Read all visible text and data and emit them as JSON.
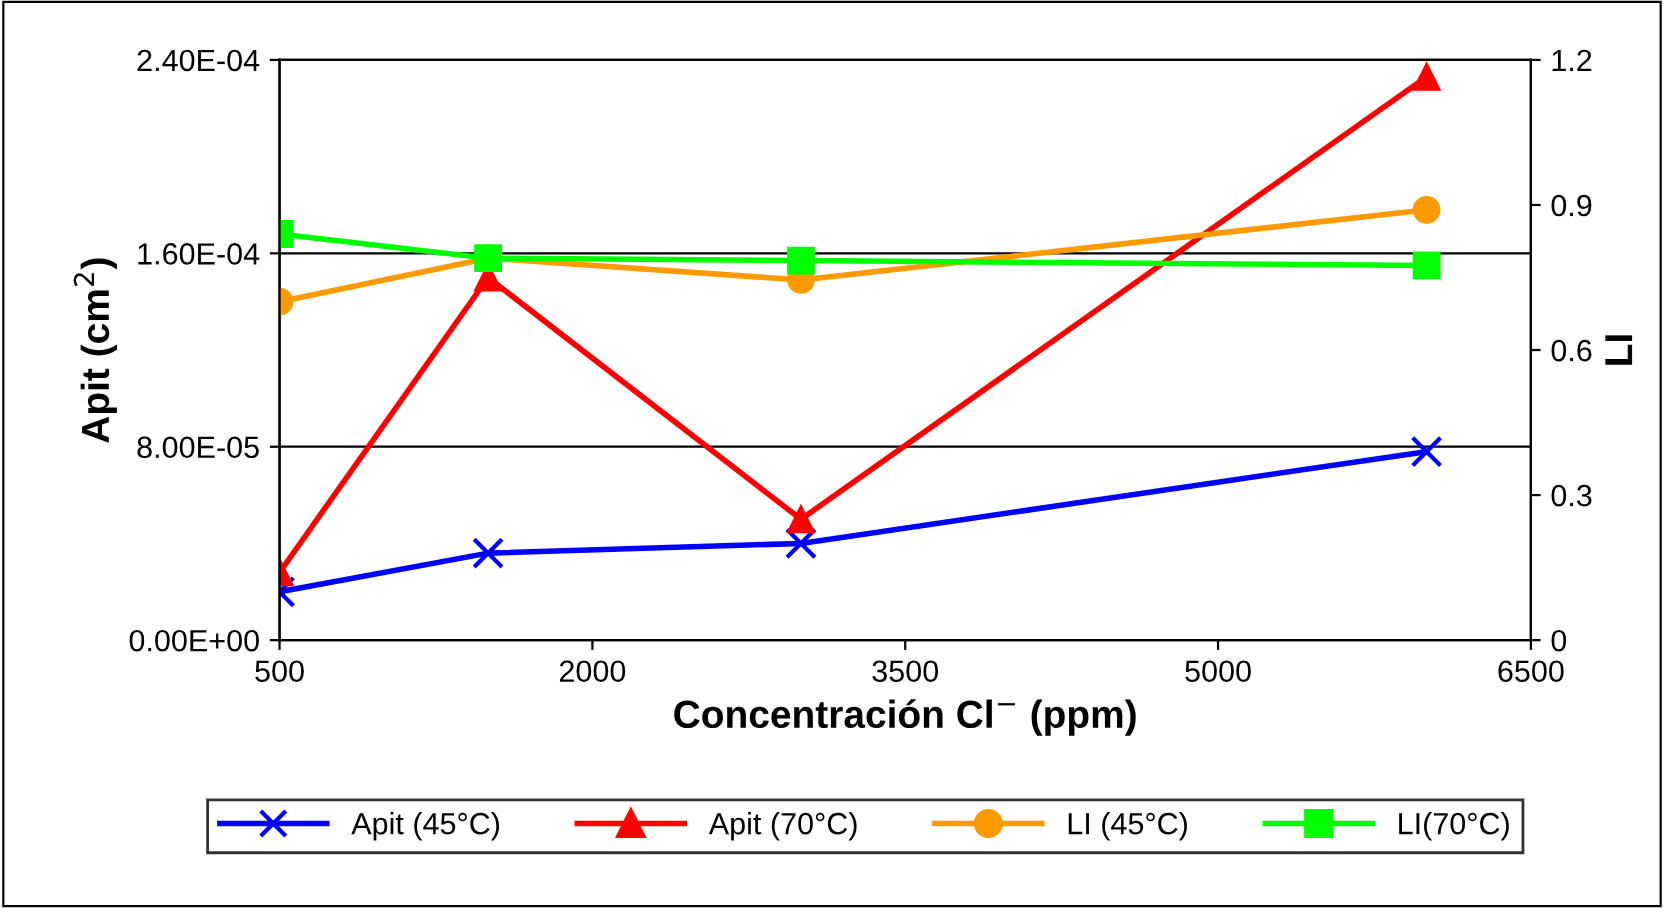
{
  "chart_data": {
    "type": "line",
    "xlabel": "Concentración Cl$^{−}$ (ppm)",
    "ylabel": "Apit (cm$^{2}$)",
    "y2label": "LI",
    "x": [
      500,
      1500,
      3000,
      6000
    ],
    "series": [
      {
        "name": "Apit (45°C)",
        "color": "#0000ff",
        "marker": "cross",
        "values": [
          2e-05,
          3.6e-05,
          4e-05,
          7.8e-05
        ]
      },
      {
        "name": "Apit (70°C)",
        "color": "#ff0000",
        "marker": "triangle",
        "values": [
          2.8e-05,
          0.00015,
          5e-05,
          0.000233
        ]
      },
      {
        "name": "LI (45°C)",
        "color": "#ff9900",
        "marker": "circle",
        "axis": "y2",
        "values": [
          0.7,
          0.79,
          0.745,
          0.89
        ]
      },
      {
        "name": "LI(70°C)",
        "color": "#00ff00",
        "marker": "square",
        "axis": "y2",
        "values": [
          0.84,
          0.79,
          0.785,
          0.775
        ]
      }
    ],
    "xlim": [
      500,
      6500
    ],
    "xticks": [
      500,
      2000,
      3500,
      5000,
      6500
    ],
    "ylim": [
      0,
      0.00024
    ],
    "yticks": [
      {
        "value": 0,
        "label": "0.00E+00"
      },
      {
        "value": 8e-05,
        "label": "8.00E-05"
      },
      {
        "value": 0.00016,
        "label": "1.60E-04"
      },
      {
        "value": 0.00024,
        "label": "2.40E-04"
      }
    ],
    "y2lim": [
      0,
      1.2
    ],
    "y2ticks": [
      0,
      0.3,
      0.6,
      0.9,
      1.2
    ],
    "grid": "y",
    "legend": "bottom",
    "line_style": "solid"
  }
}
